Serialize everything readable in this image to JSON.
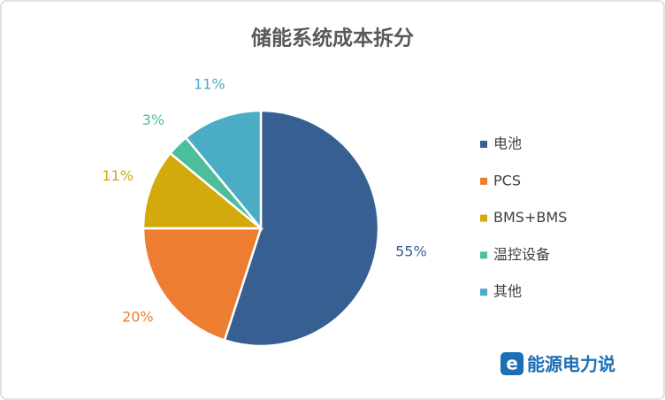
{
  "chart_data": {
    "type": "pie",
    "title": "储能系统成本拆分",
    "categories": [
      "电池",
      "PCS",
      "BMS+BMS",
      "温控设备",
      "其他"
    ],
    "values": [
      55,
      20,
      11,
      3,
      11
    ],
    "value_labels": [
      "55%",
      "20%",
      "11%",
      "3%",
      "11%"
    ],
    "colors": [
      "#375f91",
      "#ed7d31",
      "#d4a90c",
      "#4dbe9b",
      "#4bacc6"
    ],
    "legend": "right",
    "watermark": "能源电力说"
  }
}
